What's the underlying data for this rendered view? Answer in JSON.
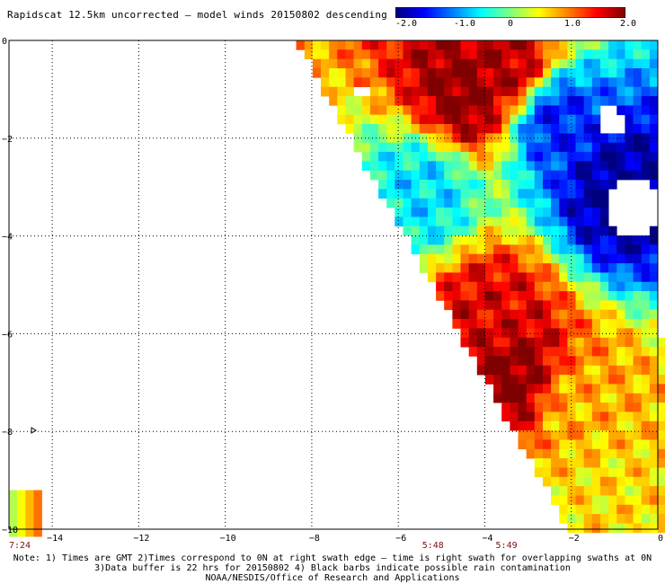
{
  "title": "Rapidscat 12.5km uncorrected — model winds 20150802 descending",
  "colorbar": {
    "labels": [
      "-2.0",
      "-1.0",
      "0",
      "1.0",
      "2.0"
    ],
    "values": [
      -2.0,
      -1.0,
      0,
      1.0,
      2.0
    ],
    "range": [
      -2.0,
      2.0
    ],
    "colors": [
      "#00007f",
      "#0000ff",
      "#007fff",
      "#00ffff",
      "#7fff7f",
      "#ffff00",
      "#ff7f00",
      "#ff0000",
      "#7f0000"
    ]
  },
  "axes": {
    "x_range": [
      -15,
      0
    ],
    "y_range": [
      -10,
      0
    ],
    "x_ticks": [
      -14,
      -12,
      -10,
      -8,
      -6,
      -4,
      -2,
      0
    ],
    "x_tick_labels": [
      "−14",
      "−12",
      "−10",
      "−8",
      "−6",
      "−4",
      "−2",
      "0"
    ],
    "y_ticks": [
      0,
      -2,
      -4,
      -6,
      -8,
      -10
    ],
    "y_tick_labels": [
      "0",
      "−2",
      "−4",
      "−6",
      "−8",
      "−10"
    ],
    "grid": true
  },
  "swath_times": [
    {
      "label": "7:24",
      "x": -15.0
    },
    {
      "label": "5:48",
      "x": -5.2
    },
    {
      "label": "5:49",
      "x": -3.5
    }
  ],
  "notes": [
    "Note: 1) Times are GMT 2)Times correspond to 0N at right swath edge — time is right swath for overlapping swaths at 0N",
    "3)Data buffer is 22 hrs for 20150802 4) Black barbs indicate possible rain contamination",
    "NOAA/NESDIS/Office of Research and Applications"
  ],
  "field_features": [
    {
      "lon": -4.5,
      "lat": -1.0,
      "value": 2.0
    },
    {
      "lon": -3.5,
      "lat": -0.5,
      "value": 1.8
    },
    {
      "lon": -4.0,
      "lat": -5.5,
      "value": 1.6
    },
    {
      "lon": -3.5,
      "lat": -6.8,
      "value": 2.0
    },
    {
      "lon": -2.0,
      "lat": -7.5,
      "value": 0.8
    },
    {
      "lon": -1.0,
      "lat": -3.0,
      "value": -1.9
    },
    {
      "lon": -2.5,
      "lat": -1.5,
      "value": -1.4
    },
    {
      "lon": -5.5,
      "lat": -3.0,
      "value": -0.6
    },
    {
      "lon": -1.5,
      "lat": -9.0,
      "value": 0.6
    }
  ]
}
